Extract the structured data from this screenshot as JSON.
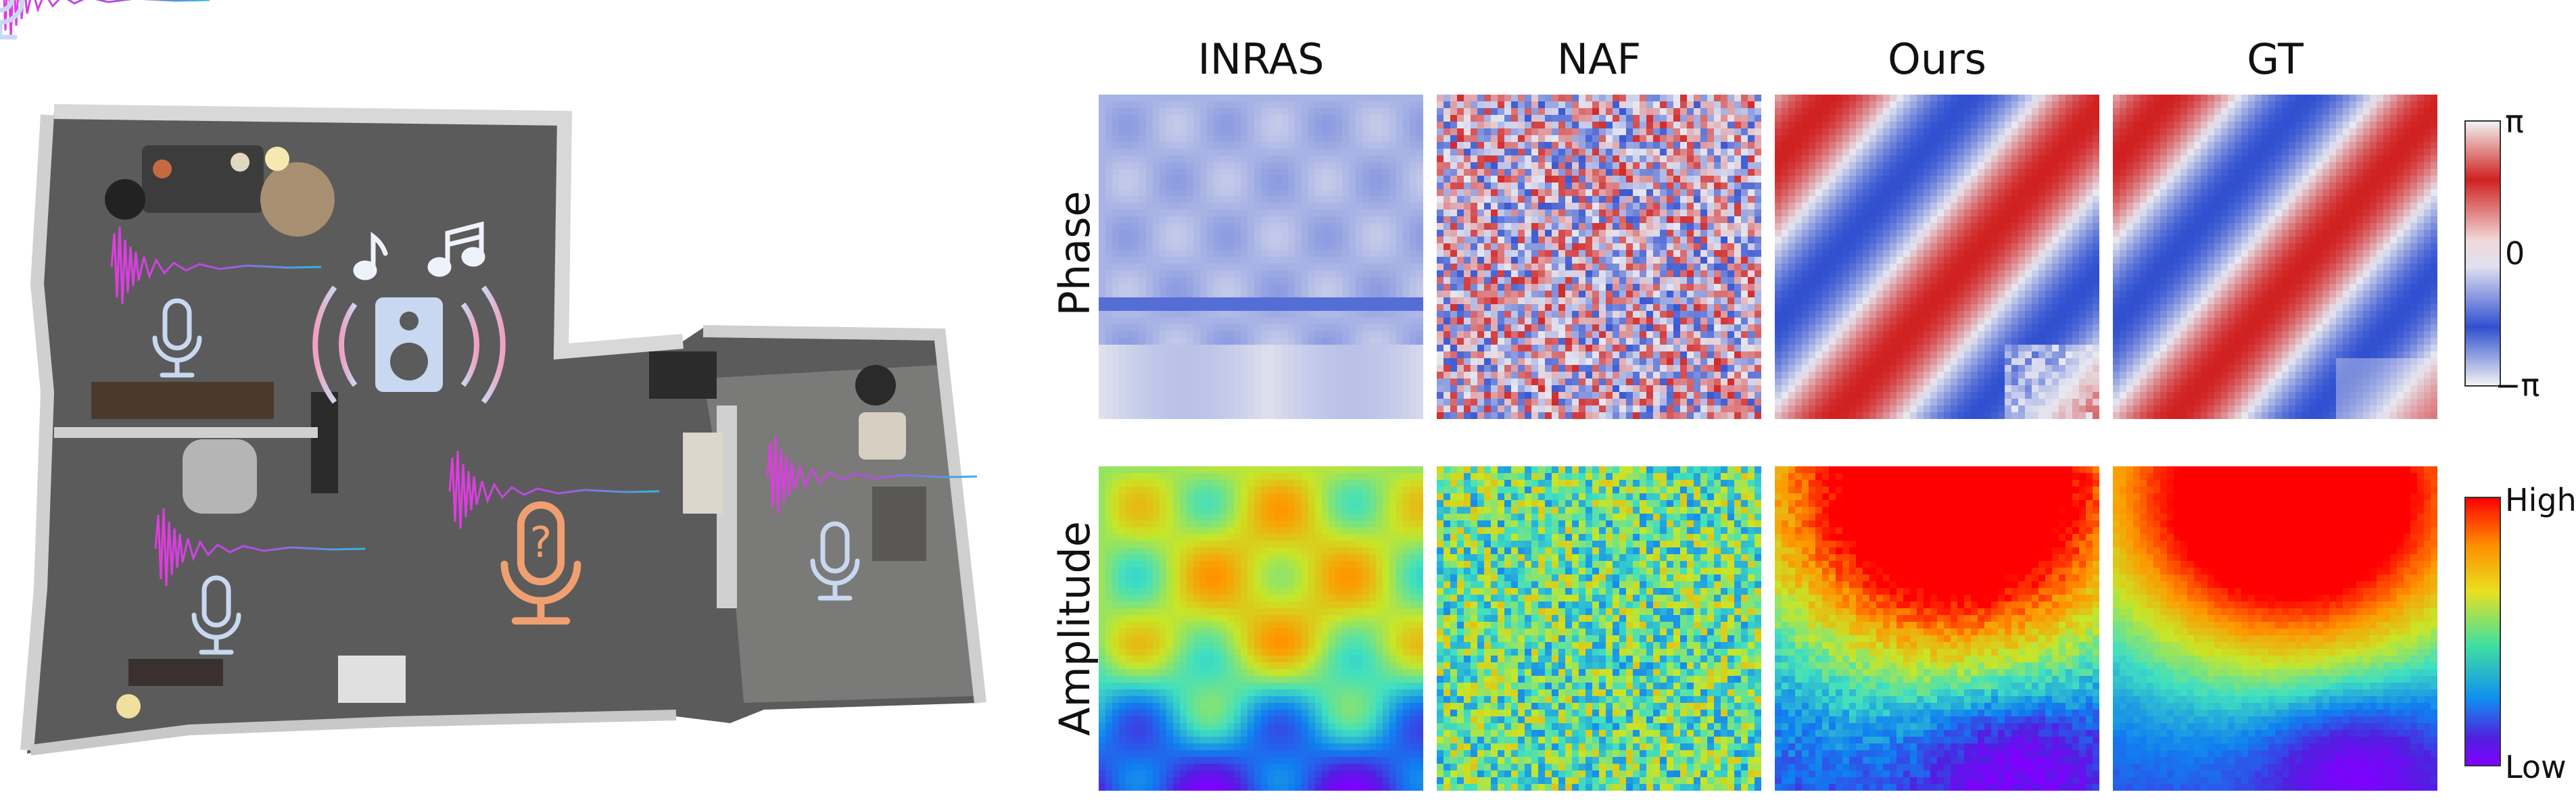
{
  "figure": {
    "columns": [
      "INRAS",
      "NAF",
      "Ours",
      "GT"
    ],
    "rows": [
      "Phase",
      "Amplitude"
    ],
    "phase_colorbar": {
      "top": "π",
      "mid": "0",
      "bottom": "−π"
    },
    "amplitude_colorbar": {
      "top": "High",
      "bottom": "Low"
    }
  },
  "scene": {
    "icons": [
      "speaker-icon",
      "music-note-icon",
      "microphone-icon",
      "query-microphone-icon",
      "waveform-icon"
    ],
    "colors": {
      "waveform": "#e040e0",
      "waveform_tail": "#40b0e0",
      "mic": "#c8d8f0",
      "query_mic": "#f0a070",
      "speaker": "#c8d8f0"
    }
  }
}
